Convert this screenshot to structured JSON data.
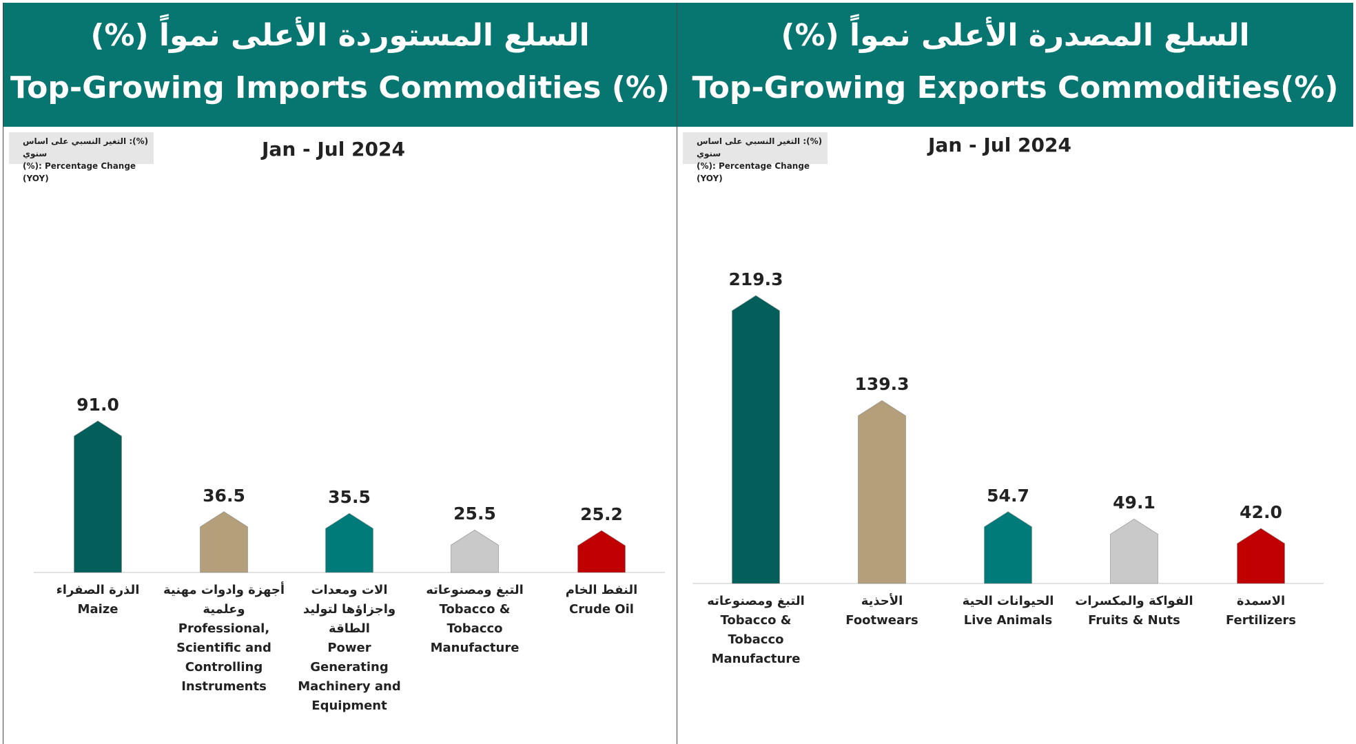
{
  "chart_data": [
    {
      "type": "bar",
      "title": "السلع المستوردة الأعلى نمواً (%)",
      "title_english": "Top-Growing Imports Commodities (%)",
      "subtitle": "Jan - Jul 2024",
      "note": [
        "(%): التغير النسبي على اساس سنوي",
        "(%): Percentage Change  (YOY)"
      ],
      "categories": [
        "الذرة الصفراء\nMaize",
        "أجهزة وادوات مهنية وعلمية\nProfessional, Scientific and Controlling Instruments",
        "الات ومعدات واجزاؤها لتوليد الطاقة\nPower Generating Machinery and Equipment",
        "التبغ ومصنوعاته\nTobacco & Tobacco Manufacture",
        "النفط الخام\nCrude Oil"
      ],
      "values": [
        91.0,
        36.5,
        35.5,
        25.5,
        25.2
      ],
      "value_labels": [
        "91.0",
        "36.5",
        "35.5",
        "25.5",
        "25.2"
      ],
      "colors": [
        "#045e5a",
        "#b39f7a",
        "#007b7a",
        "#c9c9c9",
        "#c00000"
      ]
    },
    {
      "type": "bar",
      "title": "السلع المصدرة الأعلى نمواً (%)",
      "title_english": "Top-Growing Exports Commodities(%)",
      "subtitle": "Jan - Jul 2024",
      "note": [
        "(%): التغير النسبي على اساس سنوي",
        "(%): Percentage Change  (YOY)"
      ],
      "categories": [
        "التبغ ومصنوعاته\nTobacco & Tobacco Manufacture",
        "الأحذية\nFootwears",
        "الحيوانات الحية\nLive Animals",
        "الفواكة والمكسرات\nFruits & Nuts",
        "الاسمدة\nFertilizers"
      ],
      "values": [
        219.3,
        139.3,
        54.7,
        49.1,
        42.0
      ],
      "value_labels": [
        "219.3",
        "139.3",
        "54.7",
        "49.1",
        "42.0"
      ],
      "colors": [
        "#045e5a",
        "#b39f7a",
        "#007b7a",
        "#c9c9c9",
        "#c00000"
      ]
    }
  ]
}
